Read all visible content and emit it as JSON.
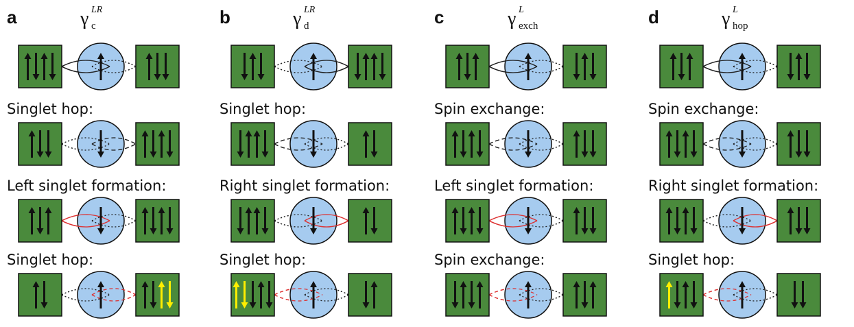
{
  "panels": [
    {
      "letter": "a",
      "symbol": "γ",
      "sup": "LR",
      "sub": "c",
      "steps": [
        "Singlet hop:",
        "Left singlet formation:",
        "Singlet hop:"
      ]
    },
    {
      "letter": "b",
      "symbol": "γ",
      "sup": "LR",
      "sub": "d",
      "steps": [
        "Singlet hop:",
        "Right singlet formation:",
        "Singlet hop:"
      ]
    },
    {
      "letter": "c",
      "symbol": "γ",
      "sup": "L",
      "sub": "exch",
      "steps": [
        "Spin exchange:",
        "Left singlet formation:",
        "Spin exchange:"
      ]
    },
    {
      "letter": "d",
      "symbol": "γ",
      "sup": "L",
      "sub": "hop",
      "steps": [
        "Spin exchange:",
        "Right singlet formation:",
        "Singlet hop:"
      ]
    }
  ]
}
